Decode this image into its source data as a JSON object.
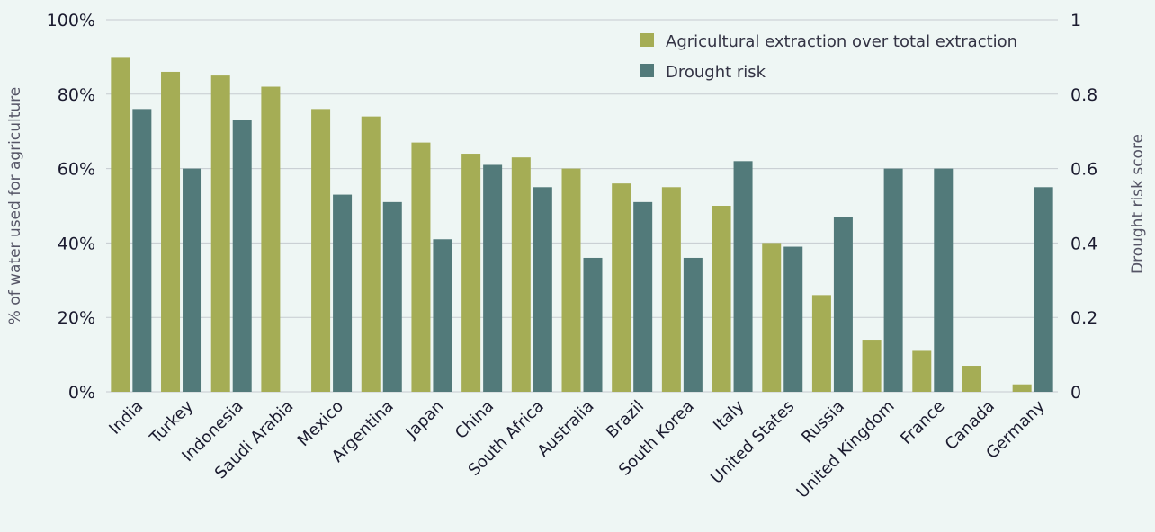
{
  "chart_data": {
    "type": "bar",
    "title": "",
    "xlabel": "",
    "ylabel": "% of water used for agriculture",
    "y2label": "Drought risk score",
    "ylim": [
      0,
      100
    ],
    "y2lim": [
      0,
      1
    ],
    "yticks": [
      "0%",
      "20%",
      "40%",
      "60%",
      "80%",
      "100%"
    ],
    "y2ticks": [
      "0",
      "0.2",
      "0.4",
      "0.6",
      "0.8",
      "1"
    ],
    "grid": "horizontal",
    "legend_position": "top-right",
    "categories": [
      "India",
      "Turkey",
      "Indonesia",
      "Saudi Arabia",
      "Mexico",
      "Argentina",
      "Japan",
      "China",
      "South Africa",
      "Australia",
      "Brazil",
      "South Korea",
      "Italy",
      "United States",
      "Russia",
      "United Kingdom",
      "France",
      "Canada",
      "Germany"
    ],
    "series": [
      {
        "name": "Agricultural extraction over total extraction",
        "axis": "left",
        "color": "#a5ad55",
        "values": [
          90,
          86,
          85,
          82,
          76,
          74,
          67,
          64,
          63,
          60,
          56,
          55,
          50,
          40,
          26,
          14,
          11,
          7,
          2
        ]
      },
      {
        "name": "Drought risk",
        "axis": "right",
        "color": "#527a7a",
        "values": [
          0.76,
          0.6,
          0.73,
          0,
          0.53,
          0.51,
          0.41,
          0.61,
          0.55,
          0.36,
          0.51,
          0.36,
          0.62,
          0.39,
          0.47,
          0.6,
          0.6,
          0,
          0.55
        ]
      }
    ]
  },
  "colors": {
    "background": "#eef6f4",
    "gridline": "#c5cbd0",
    "text": "#1b1b2f"
  }
}
